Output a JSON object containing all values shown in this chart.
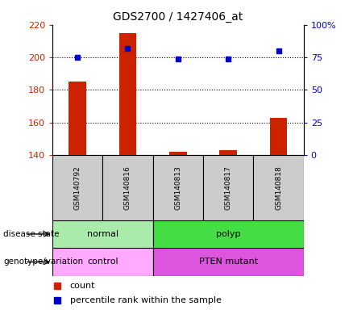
{
  "title": "GDS2700 / 1427406_at",
  "samples": [
    "GSM140792",
    "GSM140816",
    "GSM140813",
    "GSM140817",
    "GSM140818"
  ],
  "counts": [
    185,
    215,
    142,
    143,
    163
  ],
  "percentile_ranks": [
    75,
    82,
    74,
    74,
    80
  ],
  "ylim_left": [
    140,
    220
  ],
  "ylim_right": [
    0,
    100
  ],
  "yticks_left": [
    140,
    160,
    180,
    200,
    220
  ],
  "yticks_right": [
    0,
    25,
    50,
    75,
    100
  ],
  "ytick_labels_right": [
    "0",
    "25",
    "50",
    "75",
    "100%"
  ],
  "bar_color": "#cc2200",
  "dot_color": "#0000cc",
  "grid_color": "black",
  "disease_state": [
    {
      "label": "normal",
      "start": 0,
      "end": 2,
      "color": "#aaeaaa"
    },
    {
      "label": "polyp",
      "start": 2,
      "end": 5,
      "color": "#44dd44"
    }
  ],
  "genotype": [
    {
      "label": "control",
      "start": 0,
      "end": 2,
      "color": "#ffaaff"
    },
    {
      "label": "PTEN mutant",
      "start": 2,
      "end": 5,
      "color": "#dd55dd"
    }
  ],
  "disease_state_label": "disease state",
  "genotype_label": "genotype/variation",
  "legend_count": "count",
  "legend_pct": "percentile rank within the sample",
  "title_color": "black",
  "left_axis_color": "#cc2200",
  "right_axis_color": "#0000cc",
  "bar_baseline": 140,
  "bar_width": 0.35,
  "dot_size": 5,
  "gridline_values": [
    160,
    180,
    200
  ],
  "label_area_color": "#cccccc"
}
